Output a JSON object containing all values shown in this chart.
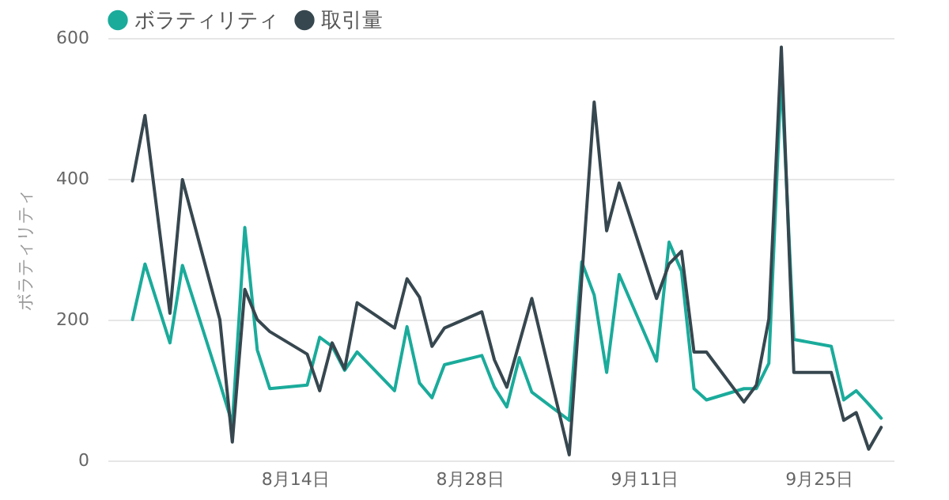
{
  "chart_data": {
    "type": "line",
    "ylabel": "ボラティリティ",
    "x": [
      "--08-01",
      "--08-02",
      "--08-04",
      "--08-05",
      "--08-08",
      "--08-09",
      "--08-10",
      "--08-11",
      "--08-12",
      "--08-15",
      "--08-16",
      "--08-17",
      "--08-18",
      "--08-19",
      "--08-22",
      "--08-23",
      "--08-24",
      "--08-25",
      "--08-26",
      "--08-29",
      "--08-30",
      "--08-31",
      "--09-01",
      "--09-02",
      "--09-05",
      "--09-06",
      "--09-07",
      "--09-08",
      "--09-09",
      "--09-12",
      "--09-13",
      "--09-14",
      "--09-15",
      "--09-16",
      "--09-19",
      "--09-20",
      "--09-21",
      "--09-22",
      "--09-23",
      "--09-26",
      "--09-27",
      "--09-28",
      "--09-29",
      "--09-30"
    ],
    "series": [
      {
        "name": "ボラティリティ",
        "color": "#1aab9b",
        "values": [
          200,
          279,
          167,
          277,
          110,
          52,
          331,
          157,
          102,
          107,
          175,
          162,
          128,
          154,
          99,
          190,
          110,
          89,
          136,
          149,
          104,
          76,
          146,
          97,
          57,
          282,
          235,
          125,
          264,
          141,
          310,
          269,
          102,
          86,
          102,
          102,
          138,
          548,
          172,
          162,
          86,
          99,
          80,
          60
        ]
      },
      {
        "name": "取引量",
        "color": "#37474f",
        "values": [
          397,
          490,
          209,
          399,
          200,
          26,
          243,
          200,
          183,
          151,
          99,
          167,
          130,
          224,
          188,
          258,
          232,
          162,
          188,
          211,
          143,
          104,
          167,
          230,
          8,
          258,
          509,
          326,
          394,
          230,
          279,
          297,
          154,
          154,
          83,
          107,
          201,
          587,
          125,
          125,
          57,
          68,
          16,
          47
        ]
      }
    ],
    "xlim": [
      "--07-30",
      "--10-01"
    ],
    "xticks": [
      {
        "value": "--08-14",
        "label": "8月14日"
      },
      {
        "value": "--08-28",
        "label": "8月28日"
      },
      {
        "value": "--09-11",
        "label": "9月11日"
      },
      {
        "value": "--09-25",
        "label": "9月25日"
      }
    ],
    "ylim": [
      0,
      600
    ],
    "yticks": [
      0,
      200,
      400,
      600
    ],
    "grid": "y",
    "legend": "top"
  }
}
